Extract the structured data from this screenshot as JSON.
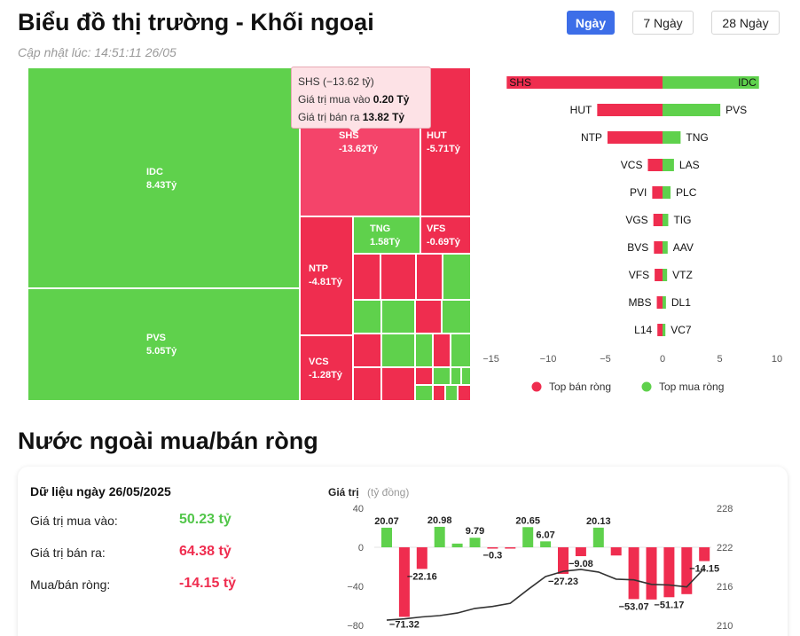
{
  "header": {
    "title": "Biểu đồ thị trường - Khối ngoại",
    "updated": "Cập nhật lúc: 14:51:11 26/05"
  },
  "period_tabs": [
    {
      "label": "Ngày",
      "active": true
    },
    {
      "label": "7 Ngày",
      "active": false
    },
    {
      "label": "28 Ngày",
      "active": false
    }
  ],
  "colors": {
    "buy": "#5fd14c",
    "sell": "#ef2d4f",
    "sell_highlight": "#f4446a",
    "line": "#333333",
    "accent": "#3d6ee8"
  },
  "tooltip": {
    "title": "SHS (−13.62 tỷ)",
    "buy_label": "Giá trị mua vào",
    "buy_value": "0.20 Tỷ",
    "sell_label": "Giá trị bán ra",
    "sell_value": "13.82 Tỷ"
  },
  "treemap": {
    "labels": {
      "idc": {
        "name": "IDC",
        "value": "8.43Tỷ"
      },
      "pvs": {
        "name": "PVS",
        "value": "5.05Tỷ"
      },
      "shs": {
        "name": "SHS",
        "value": "-13.62Tỷ"
      },
      "hut": {
        "name": "HUT",
        "value": "-5.71Tỷ"
      },
      "tng": {
        "name": "TNG",
        "value": "1.58Tỷ"
      },
      "vfs": {
        "name": "VFS",
        "value": "-0.69Tỷ"
      },
      "ntp": {
        "name": "NTP",
        "value": "-4.81Tỷ"
      },
      "vcs": {
        "name": "VCS",
        "value": "-1.28Tỷ"
      }
    }
  },
  "chart_data": [
    {
      "type": "bar",
      "orientation": "horizontal",
      "title": "",
      "sell_categories": [
        "SHS",
        "HUT",
        "NTP",
        "VCS",
        "PVI",
        "VGS",
        "BVS",
        "VFS",
        "MBS",
        "L14"
      ],
      "sell_values": [
        -13.62,
        -5.71,
        -4.81,
        -1.28,
        -0.9,
        -0.8,
        -0.75,
        -0.69,
        -0.5,
        -0.45
      ],
      "buy_categories": [
        "IDC",
        "PVS",
        "TNG",
        "LAS",
        "PLC",
        "TIG",
        "AAV",
        "VTZ",
        "DL1",
        "VC7"
      ],
      "buy_values": [
        8.43,
        5.05,
        1.58,
        1.0,
        0.7,
        0.5,
        0.45,
        0.4,
        0.3,
        0.25
      ],
      "x_ticks": [
        "−15",
        "−10",
        "−5",
        "0",
        "5",
        "10"
      ],
      "xlim": [
        -15,
        10
      ],
      "legend": [
        {
          "name": "Top bán ròng",
          "color": "#ef2d4f"
        },
        {
          "name": "Top mua ròng",
          "color": "#5fd14c"
        }
      ],
      "legend_position": "bottom"
    },
    {
      "type": "bar+line",
      "ylabel": "Giá trị",
      "ylabel_unit": "(tỷ đồng)",
      "left_ticks": [
        "40",
        "0",
        "−40",
        "−80"
      ],
      "right_ticks": [
        "228",
        "222",
        "216",
        "210"
      ],
      "ylim_left": [
        -80,
        40
      ],
      "ylim_right": [
        210,
        228
      ],
      "bars": [
        20.07,
        -71.32,
        -22.16,
        20.98,
        3.8,
        9.79,
        -0.3,
        -0.3,
        20.65,
        6.07,
        -27.23,
        -9.08,
        20.13,
        -8.4,
        -53.07,
        -53.5,
        -51.17,
        -48.0,
        -14.15
      ],
      "bar_labels": [
        "20.07",
        "−71.32",
        "−22.16",
        "20.98",
        "",
        "9.79",
        "−0.3",
        "",
        "20.65",
        "6.07",
        "−27.23",
        "−9.08",
        "20.13",
        "",
        "−53.07",
        "",
        "−51.17",
        "",
        "−14.15"
      ],
      "line": [
        210.8,
        211.0,
        211.3,
        211.5,
        211.9,
        212.6,
        212.9,
        213.4,
        215.5,
        217.5,
        218.3,
        218.6,
        218.2,
        217.1,
        217.0,
        216.3,
        216.2,
        215.9,
        218.8
      ]
    }
  ],
  "section2": {
    "title": "Nước ngoài mua/bán ròng",
    "date_label": "Dữ liệu ngày 26/05/2025",
    "rows": [
      {
        "label": "Giá trị mua vào:",
        "value": "50.23 tỷ"
      },
      {
        "label": "Giá trị bán ra:",
        "value": "64.38 tỷ"
      },
      {
        "label": "Mua/bán ròng:",
        "value": "-14.15 tỷ"
      }
    ]
  }
}
